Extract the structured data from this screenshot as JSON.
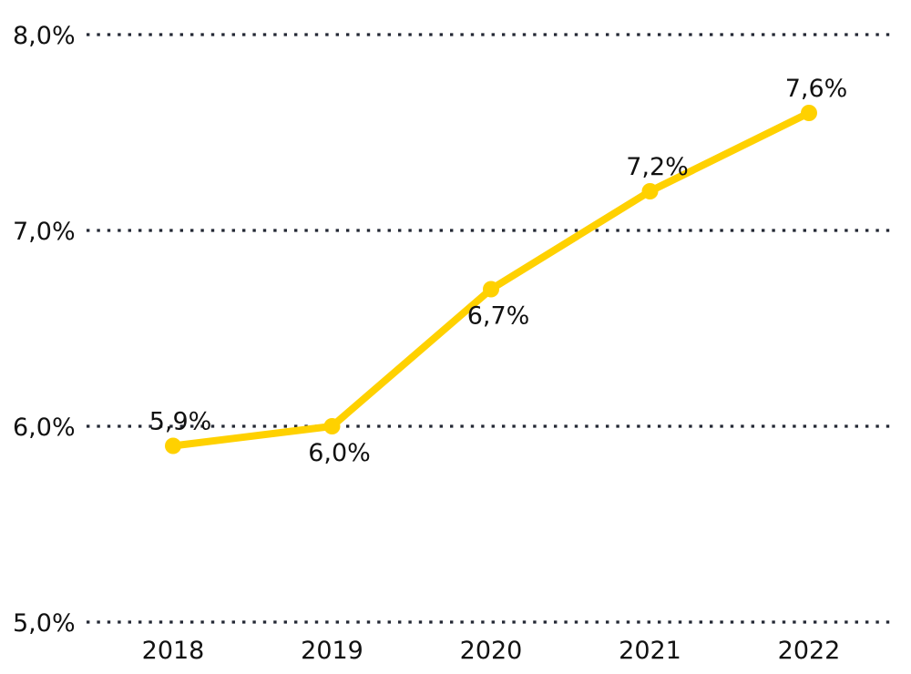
{
  "chart_data": {
    "type": "line",
    "title": "",
    "categories": [
      "2018",
      "2019",
      "2020",
      "2021",
      "2022"
    ],
    "values": [
      5.9,
      6.0,
      6.7,
      7.2,
      7.6
    ],
    "point_labels": [
      "5,9%",
      "6,0%",
      "6,7%",
      "7,2%",
      "7,6%"
    ],
    "point_label_positions": [
      "above",
      "below",
      "below",
      "above",
      "above"
    ],
    "y_ticks": [
      {
        "value": 8.0,
        "label": "8,0%"
      },
      {
        "value": 7.0,
        "label": "7,0%"
      },
      {
        "value": 6.0,
        "label": "6,0%"
      },
      {
        "value": 5.0,
        "label": "5,0%"
      }
    ],
    "ylim": [
      5.0,
      8.0
    ],
    "xlabel": "",
    "ylabel": "",
    "legend": "none",
    "grid": "horizontal-dotted",
    "decimal_style": "comma",
    "colors": {
      "line": "#FFD100",
      "marker": "#FFD100",
      "grid": "#232834",
      "text": "#111111",
      "background": "#FFFFFF"
    }
  }
}
